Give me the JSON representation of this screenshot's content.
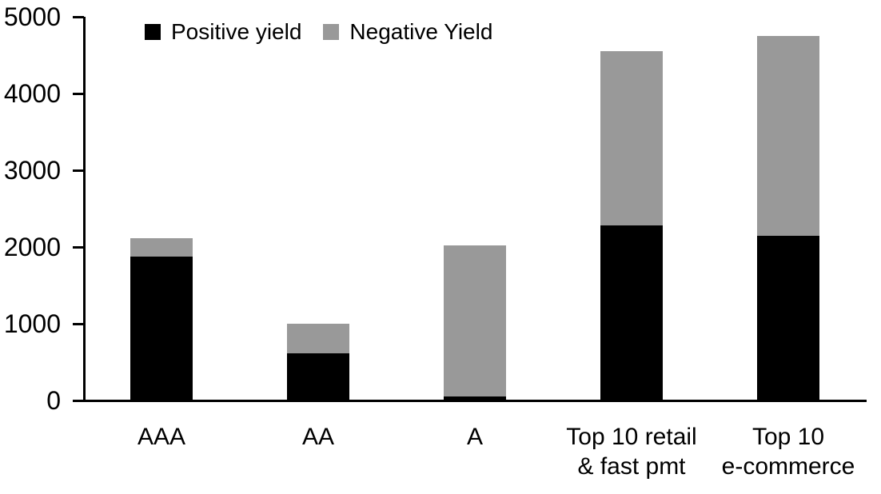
{
  "chart_data": {
    "type": "bar",
    "stacked": true,
    "title": "",
    "xlabel": "",
    "ylabel": "",
    "categories": [
      "AAA",
      "AA",
      "A",
      "Top 10 retail\n& fast pmt",
      "Top 10\ne-commerce"
    ],
    "series": [
      {
        "name": "Positive yield",
        "color": "#000000",
        "values": [
          1880,
          610,
          50,
          2280,
          2150
        ]
      },
      {
        "name": "Negative Yield",
        "color": "#999999",
        "values": [
          230,
          390,
          1970,
          2270,
          2600
        ]
      }
    ],
    "stack_totals": [
      2110,
      1000,
      2020,
      4550,
      4750
    ],
    "ylim": [
      0,
      5000
    ],
    "yticks": [
      0,
      1000,
      2000,
      3000,
      4000,
      5000
    ],
    "grid": false,
    "legend_position": "top-inside",
    "axis_color": "#000000",
    "background_color": "#ffffff"
  }
}
